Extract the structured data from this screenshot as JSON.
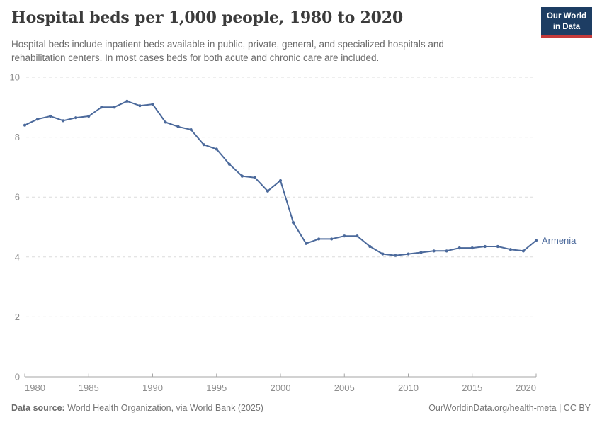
{
  "header": {
    "title": "Hospital beds per 1,000 people, 1980 to 2020",
    "subtitle": "Hospital beds include inpatient beds available in public, private, general, and specialized hospitals and rehabilitation centers. In most cases beds for both acute and chronic care are included.",
    "logo": {
      "line1": "Our World",
      "line2": "in Data",
      "bg_color": "#1d3d63",
      "stripe_color": "#c53a3a"
    }
  },
  "chart_data": {
    "type": "line",
    "title": "Hospital beds per 1,000 people, 1980 to 2020",
    "xlabel": "",
    "ylabel": "",
    "xlim": [
      1980,
      2020
    ],
    "ylim": [
      0,
      10
    ],
    "x_ticks": [
      1980,
      1985,
      1990,
      1995,
      2000,
      2005,
      2010,
      2015,
      2020
    ],
    "y_ticks": [
      0,
      2,
      4,
      6,
      8,
      10
    ],
    "grid": "horizontal-dashed",
    "legend_position": "end-of-line-label",
    "x": [
      1980,
      1981,
      1982,
      1983,
      1984,
      1985,
      1986,
      1987,
      1988,
      1989,
      1990,
      1991,
      1992,
      1993,
      1994,
      1995,
      1996,
      1997,
      1998,
      1999,
      2000,
      2001,
      2002,
      2003,
      2004,
      2005,
      2006,
      2007,
      2008,
      2009,
      2010,
      2011,
      2012,
      2013,
      2014,
      2015,
      2016,
      2017,
      2018,
      2019,
      2020
    ],
    "series": [
      {
        "name": "Armenia",
        "color": "#4c6a9c",
        "values": [
          8.4,
          8.6,
          8.7,
          8.55,
          8.65,
          8.7,
          9.0,
          9.0,
          9.2,
          9.05,
          9.1,
          8.5,
          8.35,
          8.25,
          7.75,
          7.6,
          7.1,
          6.7,
          6.65,
          6.2,
          6.55,
          5.15,
          4.45,
          4.6,
          4.6,
          4.7,
          4.7,
          4.35,
          4.1,
          4.05,
          4.1,
          4.15,
          4.2,
          4.2,
          4.3,
          4.3,
          4.35,
          4.35,
          4.25,
          4.2,
          4.55
        ]
      }
    ],
    "colors": {
      "gridline": "#dcdcdc",
      "axis_line": "#a6a6a6",
      "tick_label": "#8e8e8e"
    }
  },
  "footer": {
    "source_label": "Data source:",
    "source_text": " World Health Organization, via World Bank (2025)",
    "rights": "OurWorldinData.org/health-meta | CC BY"
  }
}
